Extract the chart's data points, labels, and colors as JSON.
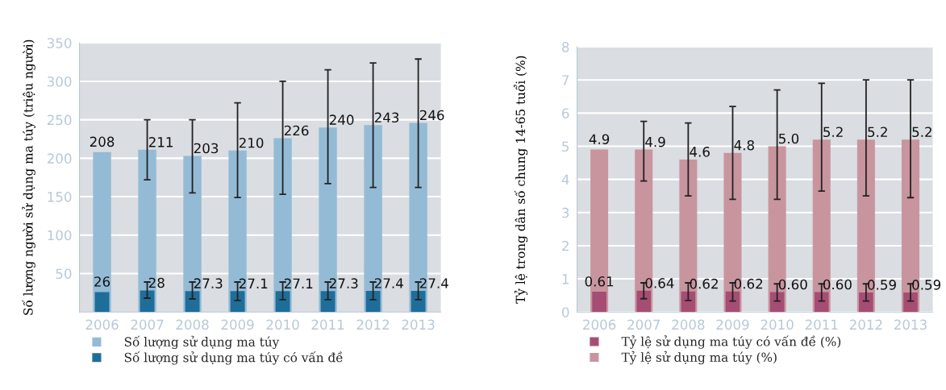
{
  "chart_data": [
    {
      "type": "bar",
      "ylabel": "Số lượng người sử dụng ma túy (triệu người)",
      "categories": [
        "2006",
        "2007",
        "2008",
        "2009",
        "2010",
        "2011",
        "2012",
        "2013"
      ],
      "series": [
        {
          "name": "Số lượng sử dụng ma túy",
          "color": "#94bbd6",
          "values": [
            208,
            211,
            203,
            210,
            226,
            240,
            243,
            246
          ],
          "errors": [
            null,
            [
              172,
              250
            ],
            [
              155,
              250
            ],
            [
              149,
              272
            ],
            [
              153,
              300
            ],
            [
              167,
              315
            ],
            [
              162,
              324
            ],
            [
              162,
              329
            ]
          ]
        },
        {
          "name": "Số lượng sử dụng ma túy có vấn đề",
          "color": "#1f6e99",
          "values": [
            26,
            28,
            27.3,
            27.1,
            27.1,
            27.3,
            27.4,
            27.4
          ],
          "errors": [
            null,
            [
              18,
              39
            ],
            [
              17,
              39
            ],
            [
              15,
              39
            ],
            [
              16,
              39
            ],
            [
              16,
              39
            ],
            [
              16,
              39
            ],
            [
              16,
              39
            ]
          ]
        }
      ],
      "ylim": [
        0,
        350
      ],
      "yticks": [
        50,
        100,
        150,
        200,
        250,
        300,
        350
      ],
      "grid": "y",
      "legend": "bottom",
      "data_labels": true
    },
    {
      "type": "bar",
      "ylabel": "Tỷ lệ trong dân số chung 14-65 tuổi (%)",
      "categories": [
        "2006",
        "2007",
        "2008",
        "2009",
        "2010",
        "2011",
        "2012",
        "2013"
      ],
      "series": [
        {
          "name": "Tỷ lệ sử dụng ma túy có vấn đề (%)",
          "color": "#a64d74",
          "values": [
            0.61,
            0.64,
            0.62,
            0.62,
            0.6,
            0.6,
            0.59,
            0.59
          ],
          "value_labels": [
            "0.61",
            "0.64",
            "0.62",
            "0.62",
            "0.60",
            "0.60",
            "0.59",
            "0.59"
          ],
          "errors": [
            null,
            [
              0.4,
              0.88
            ],
            [
              0.35,
              0.88
            ],
            [
              0.33,
              0.88
            ],
            [
              0.33,
              0.85
            ],
            [
              0.33,
              0.85
            ],
            [
              0.33,
              0.85
            ],
            [
              0.33,
              0.85
            ]
          ]
        },
        {
          "name": "Tỷ lệ sử dụng ma túy (%)",
          "color": "#c8959f",
          "values": [
            4.9,
            4.9,
            4.6,
            4.8,
            5.0,
            5.2,
            5.2,
            5.2
          ],
          "value_labels": [
            "4.9",
            "4.9",
            "4.6",
            "4.8",
            "5.0",
            "5.2",
            "5.2",
            "5.2"
          ],
          "errors": [
            null,
            [
              3.95,
              5.75
            ],
            [
              3.5,
              5.7
            ],
            [
              3.4,
              6.2
            ],
            [
              3.4,
              6.7
            ],
            [
              3.65,
              6.9
            ],
            [
              3.5,
              7.0
            ],
            [
              3.45,
              7.0
            ]
          ]
        }
      ],
      "ylim": [
        0,
        8
      ],
      "yticks": [
        0,
        1,
        2,
        3,
        4,
        5,
        6,
        7,
        8
      ],
      "grid": "y",
      "legend": "bottom"
    }
  ]
}
